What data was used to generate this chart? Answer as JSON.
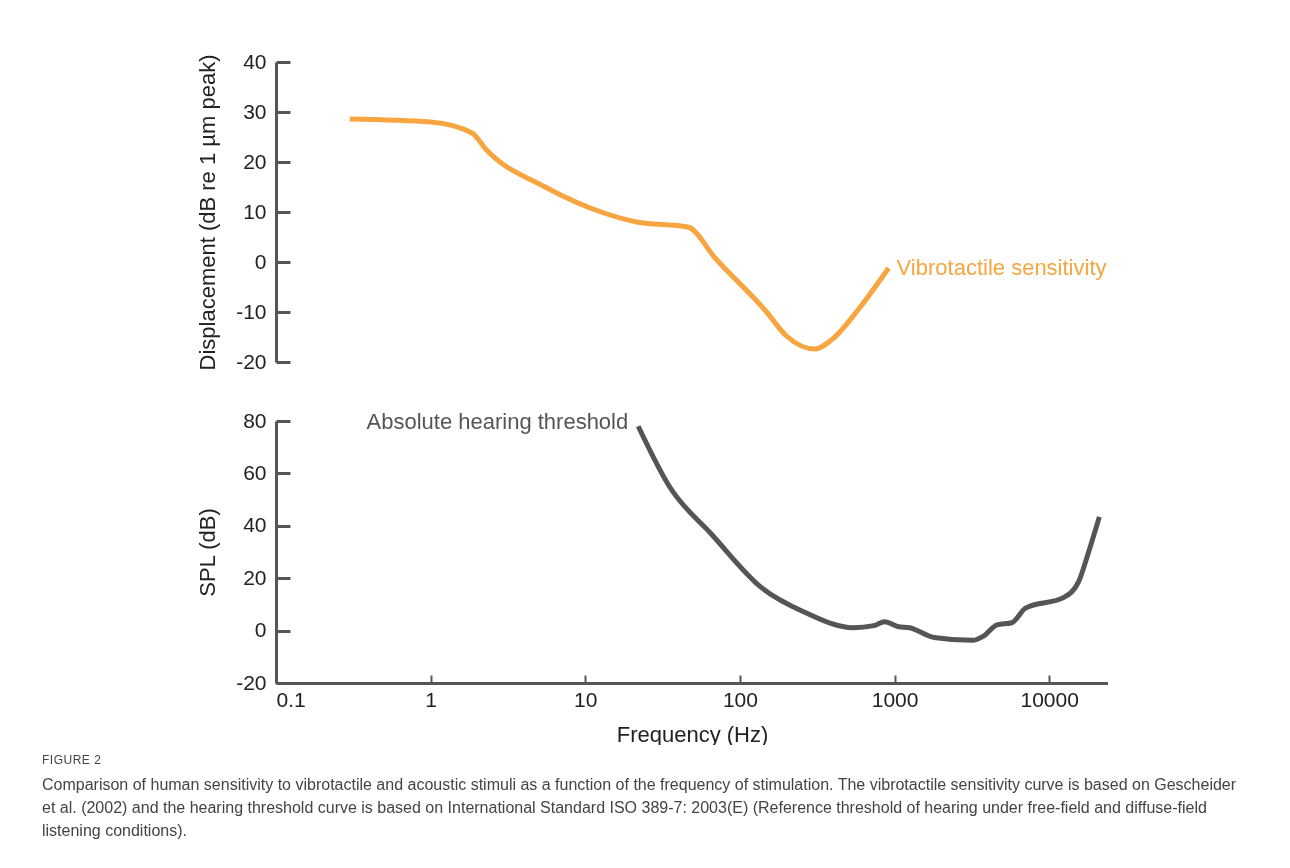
{
  "chart_data": [
    {
      "type": "line",
      "ylabel": "Displacement (dB re 1 µm peak)",
      "xlim": [
        0.1,
        24000
      ],
      "ylim": [
        -20,
        40
      ],
      "yticks": [
        -20,
        -10,
        0,
        10,
        20,
        30,
        40
      ],
      "log": "x",
      "tick_labels": "y",
      "series": [
        {
          "name": "Vibrotactile sensitivity",
          "color": "#f7a540",
          "x": [
            0.3,
            1,
            1.85,
            2.3,
            5.5,
            13.2,
            21.5,
            46,
            70,
            147,
            200,
            305,
            397,
            600,
            915
          ],
          "values": [
            28.6,
            28,
            25.8,
            22.4,
            15,
            9.8,
            8,
            7,
            0.6,
            -9.8,
            -14.8,
            -17.4,
            -15.4,
            -9,
            -1.2
          ]
        }
      ]
    },
    {
      "type": "line",
      "xlabel": "Frequency (Hz)",
      "ylabel": "SPL (dB)",
      "xlim": [
        0.1,
        24000
      ],
      "xticks": [
        0.1,
        1,
        10,
        100,
        1000,
        10000
      ],
      "ylim": [
        -20,
        80
      ],
      "yticks": [
        -20,
        0,
        20,
        40,
        60,
        80
      ],
      "log": "x",
      "series": [
        {
          "name": "Absolute hearing threshold",
          "color": "#555555",
          "x": [
            22,
            35,
            66,
            138,
            260,
            540,
            735,
            860,
            1060,
            1250,
            1800,
            3190,
            3740,
            4600,
            5730,
            7030,
            12450,
            15500,
            17960,
            21100
          ],
          "values": [
            78,
            55,
            36.6,
            16.4,
            7.1,
            1.1,
            1.9,
            3.4,
            1.5,
            1.1,
            -2.6,
            -3.7,
            -2.2,
            2.2,
            3,
            8.6,
            12.7,
            18.7,
            29.9,
            43.4
          ]
        }
      ],
      "annotations": [
        "FIGURE 2",
        "Comparison of human sensitivity to vibrotactile and acoustic stimuli as a function of the frequency of stimulation. The vibrotactile sensitivity curve is based on Gescheider et al. (2002) and the hearing threshold curve is based on International Standard ISO 389-7: 2003(E) (Reference threshold of hearing under free-field and diffuse-field listening conditions)."
      ]
    }
  ]
}
